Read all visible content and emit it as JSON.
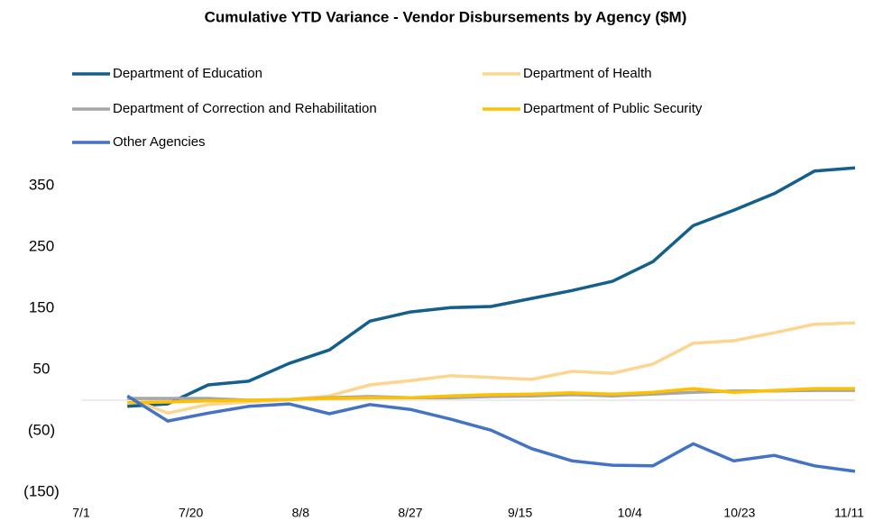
{
  "chart_data": {
    "type": "line",
    "title": "Cumulative YTD Variance - Vendor Disbursements by Agency ($M)",
    "x": [
      "7/9",
      "7/16",
      "7/23",
      "7/30",
      "8/6",
      "8/13",
      "8/20",
      "8/27",
      "9/3",
      "9/10",
      "9/17",
      "9/24",
      "10/1",
      "10/8",
      "10/15",
      "10/22",
      "10/29",
      "11/5",
      "11/12"
    ],
    "xlim": [
      "7/1",
      "11/12"
    ],
    "xticks": [
      "7/1",
      "7/20",
      "8/8",
      "8/27",
      "9/15",
      "10/4",
      "10/23",
      "11/11"
    ],
    "ylim": [
      -150,
      400
    ],
    "yticks": [
      350,
      250,
      150,
      50,
      {
        "value": -50,
        "label": "(50)"
      },
      {
        "value": -150,
        "label": "(150)"
      }
    ],
    "grid": false,
    "legend": "top",
    "series": [
      {
        "name": "Department of Education",
        "color": "#145f8c",
        "values": [
          -10,
          -6,
          25,
          31,
          60,
          82,
          129,
          144,
          151,
          153,
          166,
          179,
          194,
          226,
          285,
          310,
          337,
          374,
          379
        ]
      },
      {
        "name": "Department of Health",
        "color": "#fcd68f",
        "values": [
          4,
          -21,
          -7,
          -3,
          1,
          7,
          25,
          32,
          40,
          37,
          34,
          47,
          44,
          59,
          93,
          97,
          110,
          124,
          126
        ]
      },
      {
        "name": "Department of Correction and Rehabilitation",
        "color": "#a6a6a6",
        "values": [
          3,
          3,
          3,
          0,
          1,
          4,
          6,
          4,
          4,
          6,
          7,
          9,
          7,
          10,
          13,
          15,
          15,
          16,
          16
        ]
      },
      {
        "name": "Department of Public Security",
        "color": "#ffc000",
        "values": [
          -4,
          -3,
          -1,
          0,
          1,
          3,
          4,
          4,
          7,
          9,
          10,
          12,
          10,
          13,
          19,
          13,
          16,
          19,
          19
        ]
      },
      {
        "name": "Other Agencies",
        "color": "#4472c4",
        "values": [
          7,
          -34,
          -21,
          -10,
          -6,
          -22,
          -7,
          -15,
          -31,
          -49,
          -79,
          -99,
          -106,
          -107,
          -71,
          -99,
          -90,
          -107,
          -116
        ]
      }
    ]
  }
}
